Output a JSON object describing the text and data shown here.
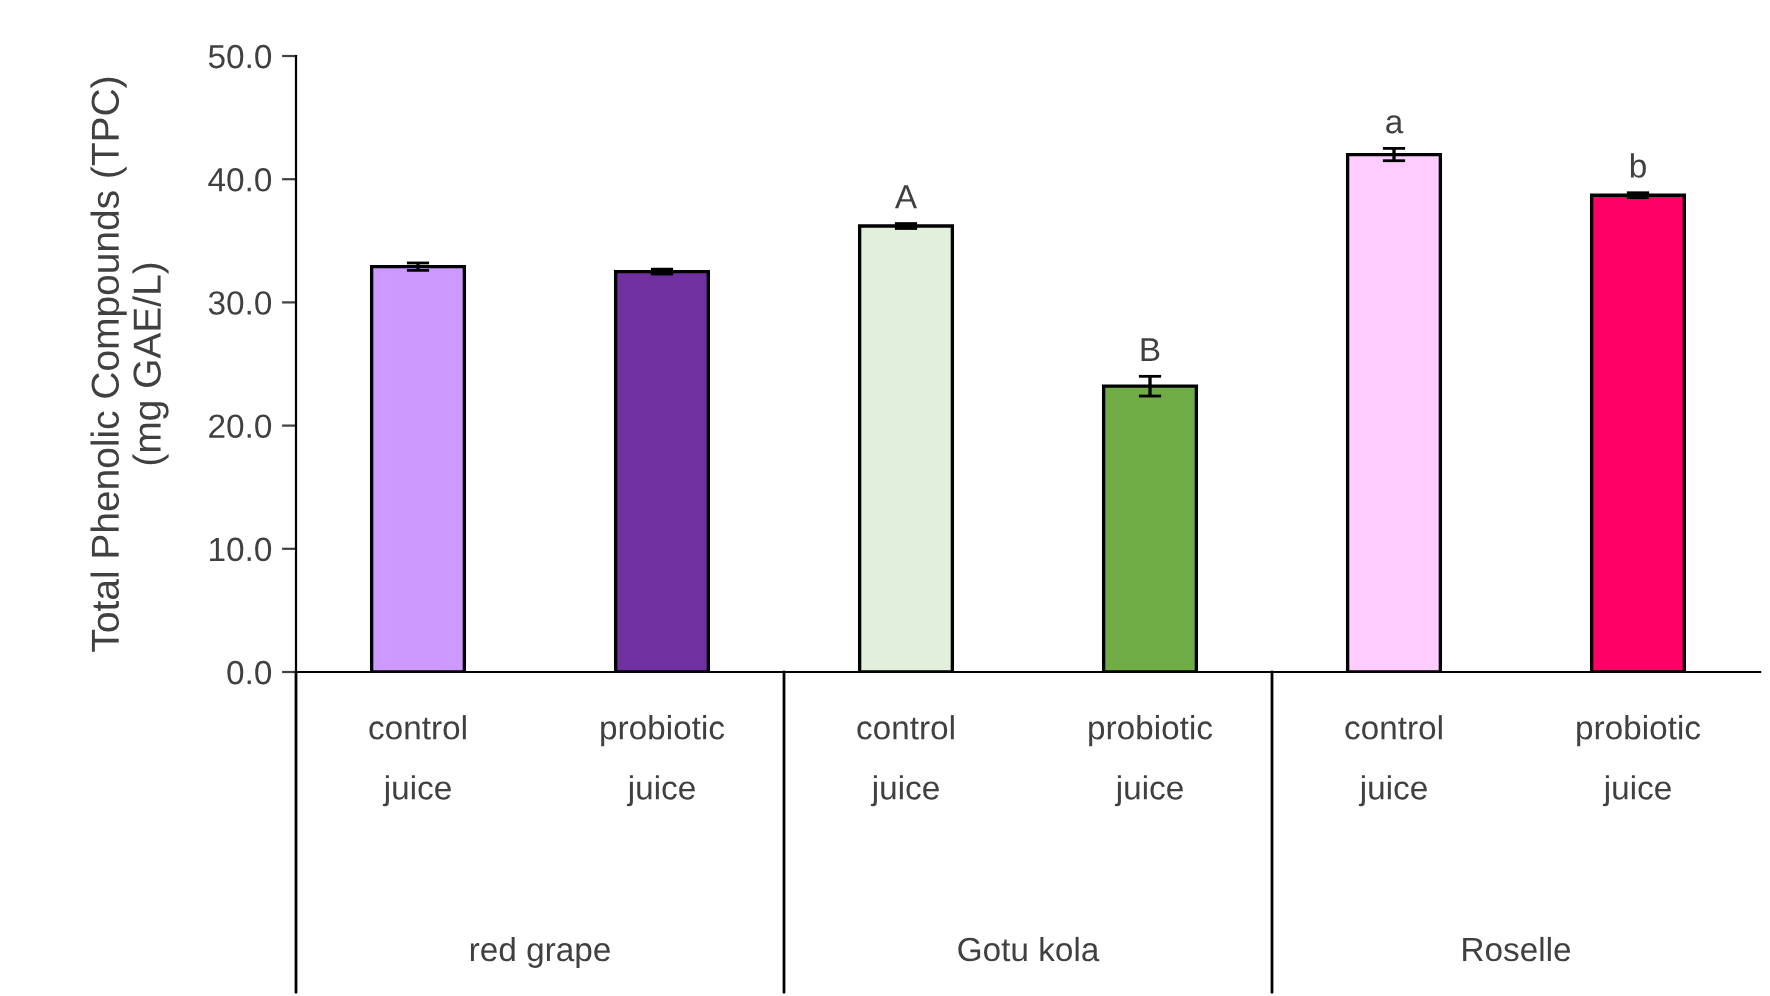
{
  "chart_data": {
    "type": "bar",
    "ylabel": "Total Phenolic Compounds (TPC)\n(mg GAE/L)",
    "categories": [
      "control\njuice",
      "probiotic\njuice",
      "control\njuice",
      "probiotic\njuice",
      "control\njuice",
      "probiotic\njuice"
    ],
    "values": [
      32.9,
      32.5,
      36.2,
      23.2,
      42.0,
      38.7
    ],
    "errors": [
      0.3,
      0.2,
      0.2,
      0.8,
      0.5,
      0.2
    ],
    "colors": [
      "#cc99ff",
      "#7030a0",
      "#e2efda",
      "#70ad47",
      "#ffccff",
      "#ff0066"
    ],
    "value_labels": [
      null,
      null,
      "A",
      "B",
      "a",
      "b"
    ],
    "annotations": [
      "red grape",
      "Gotu kola",
      "Roselle"
    ],
    "ylim": [
      0,
      50
    ],
    "yticks": [
      {
        "value": 0,
        "label": "0.0"
      },
      {
        "value": 10,
        "label": "10.0"
      },
      {
        "value": 20,
        "label": "20.0"
      },
      {
        "value": 30,
        "label": "30.0"
      },
      {
        "value": 40,
        "label": "40.0"
      },
      {
        "value": 50,
        "label": "50.0"
      }
    ],
    "grid": false
  }
}
